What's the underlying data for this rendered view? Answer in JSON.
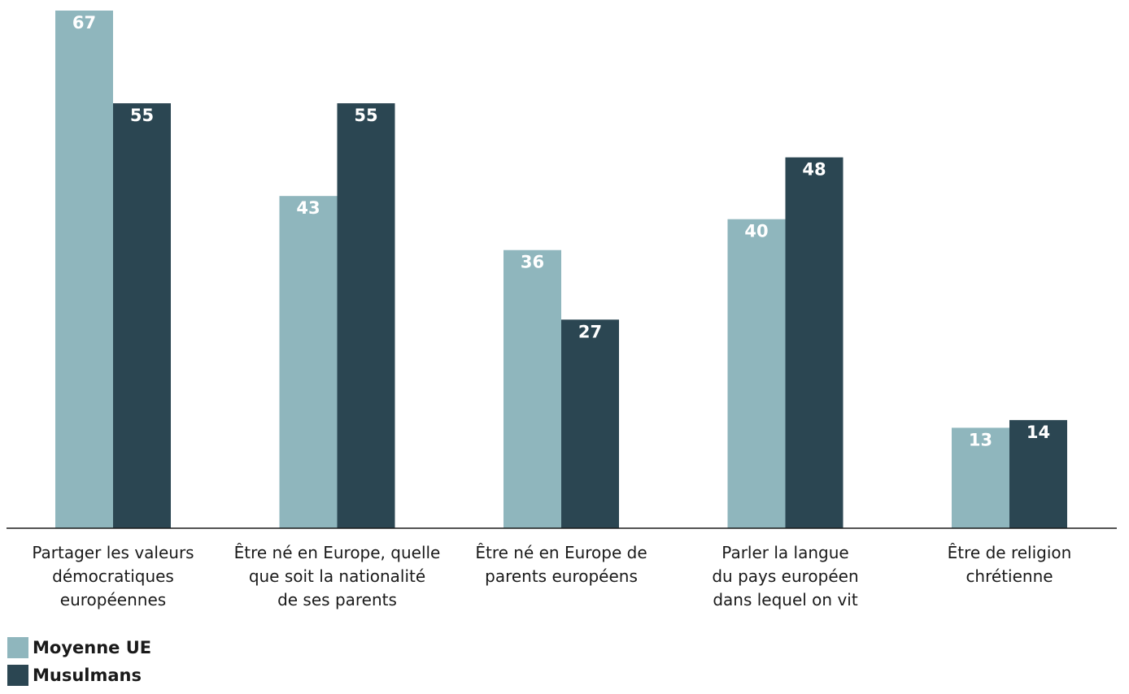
{
  "chart_data": {
    "type": "bar",
    "categories": [
      [
        "Partager les valeurs",
        "démocratiques",
        "européennes"
      ],
      [
        "Être né en Europe, quelle",
        "que soit la nationalité",
        "de ses parents"
      ],
      [
        "Être né en Europe de",
        "parents européens"
      ],
      [
        "Parler la langue",
        "du pays européen",
        "dans lequel on vit"
      ],
      [
        "Être de religion",
        "chrétienne"
      ]
    ],
    "series": [
      {
        "name": "Moyenne UE",
        "color": "#8fb6bd",
        "values": [
          67,
          43,
          36,
          40,
          13
        ]
      },
      {
        "name": "Musulmans",
        "color": "#2b4652",
        "values": [
          55,
          55,
          27,
          48,
          14
        ]
      }
    ],
    "ylim": [
      0,
      67
    ],
    "grid": false,
    "legend_position": "bottom-left"
  }
}
